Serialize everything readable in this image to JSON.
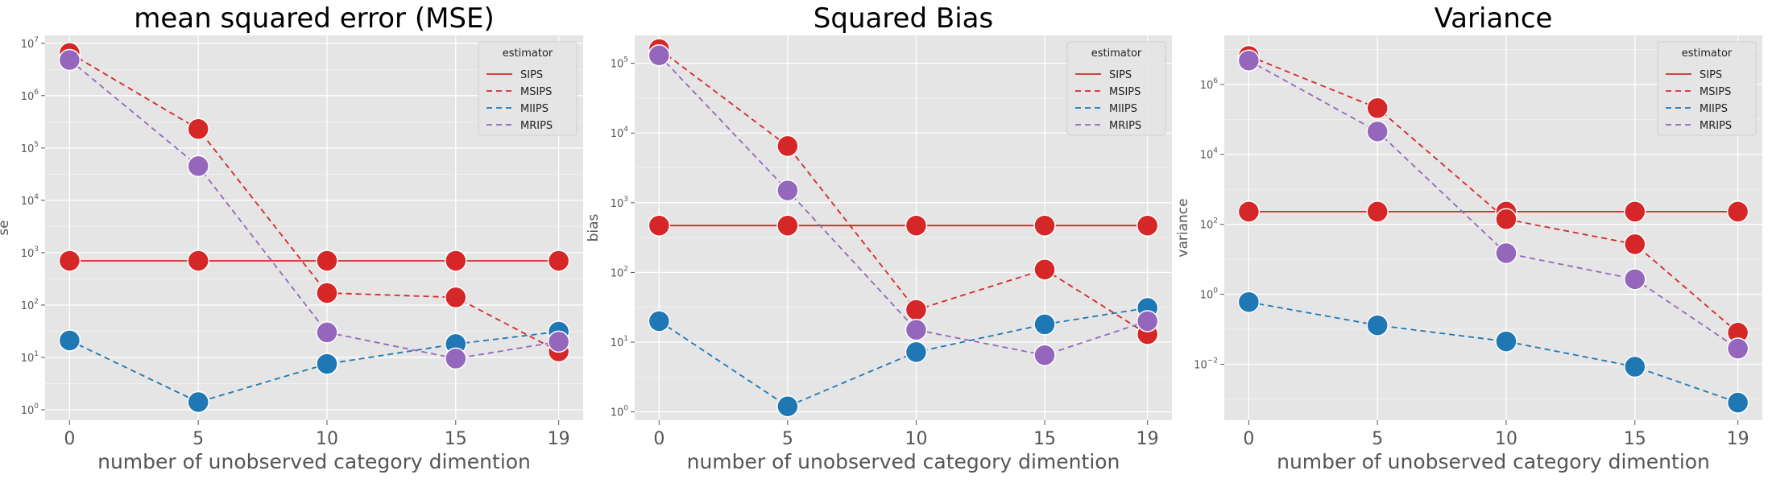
{
  "chart_data": [
    {
      "type": "line",
      "title": "mean squared error (MSE)",
      "xlabel": "number of unobserved category dimention",
      "ylabel": "se",
      "yscale": "log",
      "x": [
        0,
        5,
        10,
        15,
        19
      ],
      "xticks": [
        "0",
        "5",
        "10",
        "15",
        "19"
      ],
      "ylim_exp": [
        -0.2,
        7.15
      ],
      "ytick_exps": [
        0,
        1,
        2,
        3,
        4,
        5,
        6,
        7
      ],
      "legend": {
        "title": "estimator",
        "position": "top-right"
      },
      "series": [
        {
          "name": "SIPS",
          "values": [
            700,
            700,
            700,
            700,
            700
          ]
        },
        {
          "name": "MSIPS",
          "values": [
            6500000,
            230000,
            170,
            140,
            13
          ]
        },
        {
          "name": "MIIPS",
          "values": [
            21,
            1.4,
            7.5,
            18,
            31
          ]
        },
        {
          "name": "MRIPS",
          "values": [
            4800000,
            45000,
            30,
            9.5,
            20
          ]
        }
      ]
    },
    {
      "type": "line",
      "title": "Squared Bias",
      "xlabel": "number of unobserved category dimention",
      "ylabel": "bias",
      "yscale": "log",
      "x": [
        0,
        5,
        10,
        15,
        19
      ],
      "xticks": [
        "0",
        "5",
        "10",
        "15",
        "19"
      ],
      "ylim_exp": [
        -0.12,
        5.4
      ],
      "ytick_exps": [
        0,
        1,
        2,
        3,
        4,
        5
      ],
      "legend": {
        "title": "estimator",
        "position": "top-right"
      },
      "series": [
        {
          "name": "SIPS",
          "values": [
            470,
            470,
            470,
            470,
            470
          ]
        },
        {
          "name": "MSIPS",
          "values": [
            160000,
            6500,
            29,
            110,
            13
          ]
        },
        {
          "name": "MIIPS",
          "values": [
            20,
            1.2,
            7.2,
            18,
            31
          ]
        },
        {
          "name": "MRIPS",
          "values": [
            130000,
            1500,
            15,
            6.5,
            20
          ]
        }
      ]
    },
    {
      "type": "line",
      "title": "Variance",
      "xlabel": "number of unobserved category dimention",
      "ylabel": "variance",
      "yscale": "log",
      "x": [
        0,
        5,
        10,
        15,
        19
      ],
      "xticks": [
        "0",
        "5",
        "10",
        "15",
        "19"
      ],
      "ylim_exp": [
        -3.6,
        7.4
      ],
      "ytick_exps": [
        -2,
        0,
        2,
        4,
        6
      ],
      "legend": {
        "title": "estimator",
        "position": "top-right"
      },
      "series": [
        {
          "name": "SIPS",
          "values": [
            230,
            230,
            230,
            230,
            230
          ]
        },
        {
          "name": "MSIPS",
          "values": [
            6500000,
            210000,
            140,
            27,
            0.08
          ]
        },
        {
          "name": "MIIPS",
          "values": [
            0.6,
            0.13,
            0.045,
            0.0085,
            0.0008
          ]
        },
        {
          "name": "MRIPS",
          "values": [
            4800000,
            45000,
            15,
            2.7,
            0.028
          ]
        }
      ]
    }
  ],
  "series_styles": {
    "SIPS": {
      "color": "#d62728",
      "dash": ""
    },
    "MSIPS": {
      "color": "#d62728",
      "dash": "7,5"
    },
    "MIIPS": {
      "color": "#1f77b4",
      "dash": "7,5"
    },
    "MRIPS": {
      "color": "#9467bd",
      "dash": "7,5"
    }
  },
  "colors": {
    "panel_bg": "#e5e5e5",
    "grid": "#ffffff",
    "tick_text": "#555555"
  }
}
